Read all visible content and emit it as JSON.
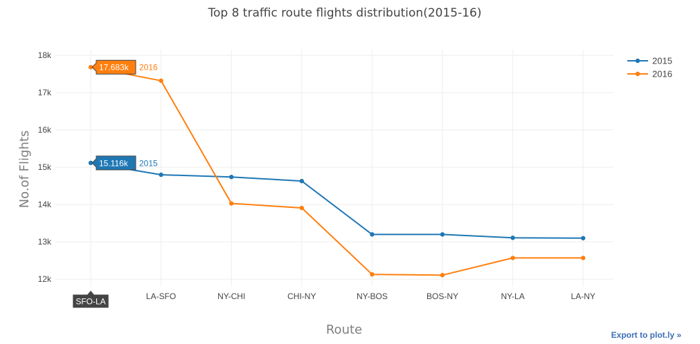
{
  "chart_data": {
    "type": "line",
    "title": "Top 8 traffic route flights distribution(2015-16)",
    "xlabel": "Route",
    "ylabel": "No.of Flights",
    "categories": [
      "SFO-LA",
      "LA-SFO",
      "NY-CHI",
      "CHI-NY",
      "NY-BOS",
      "BOS-NY",
      "NY-LA",
      "LA-NY"
    ],
    "ylim": [
      11800,
      18150
    ],
    "yticks": [
      12000,
      13000,
      14000,
      15000,
      16000,
      17000,
      18000
    ],
    "ytick_labels": [
      "12k",
      "13k",
      "14k",
      "15k",
      "16k",
      "17k",
      "18k"
    ],
    "grid": true,
    "legend_position": "top-right",
    "series": [
      {
        "name": "2015",
        "color": "#1f77b4",
        "values": [
          15116,
          14800,
          14740,
          14630,
          13200,
          13200,
          13110,
          13100
        ]
      },
      {
        "name": "2016",
        "color": "#ff7f0e",
        "values": [
          17683,
          17320,
          14030,
          13910,
          12130,
          12110,
          12570,
          12570
        ]
      }
    ],
    "hover": {
      "category": "SFO-LA",
      "labels": [
        {
          "series": "2015",
          "value_text": "15.116k"
        },
        {
          "series": "2016",
          "value_text": "17.683k"
        }
      ]
    }
  },
  "export_link": "Export to plot.ly »"
}
